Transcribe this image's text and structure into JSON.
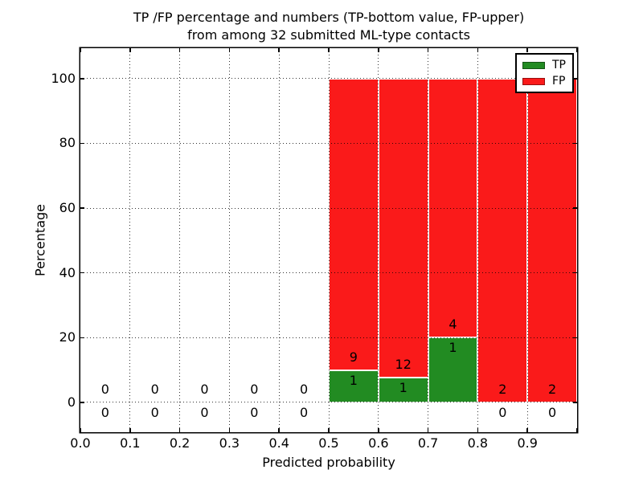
{
  "chart_data": {
    "type": "bar",
    "subtype": "stacked_percentage_histogram",
    "title_line1": "TP /FP percentage and numbers (TP-bottom value, FP-upper)",
    "title_line2": "from among 32 submitted ML-type contacts",
    "xlabel": "Predicted probability",
    "ylabel": "Percentage",
    "total_contacts": 32,
    "bin_edges": [
      0.0,
      0.1,
      0.2,
      0.3,
      0.4,
      0.5,
      0.6,
      0.7,
      0.8,
      0.9,
      1.0
    ],
    "xtick_values": [
      0.0,
      0.1,
      0.2,
      0.3,
      0.4,
      0.5,
      0.6,
      0.7,
      0.8,
      0.9
    ],
    "xtick_labels": [
      "0.0",
      "0.1",
      "0.2",
      "0.3",
      "0.4",
      "0.5",
      "0.6",
      "0.7",
      "0.8",
      "0.9"
    ],
    "ytick_values": [
      0,
      20,
      40,
      60,
      80,
      100
    ],
    "ytick_labels": [
      "0",
      "20",
      "40",
      "60",
      "80",
      "100"
    ],
    "ylim": [
      -9.2,
      109.4
    ],
    "grid": "dotted",
    "legend_position": "upper-right",
    "series": [
      {
        "name": "TP",
        "color": "#228b22",
        "counts": [
          0,
          0,
          0,
          0,
          0,
          1,
          1,
          1,
          0,
          0
        ]
      },
      {
        "name": "FP",
        "color": "#fa1a1a",
        "counts": [
          0,
          0,
          0,
          0,
          0,
          9,
          12,
          4,
          2,
          2
        ]
      }
    ],
    "tp_percent_by_bin": [
      0,
      0,
      0,
      0,
      0,
      10.0,
      7.7,
      20.0,
      0,
      0
    ],
    "fp_percent_by_bin": [
      0,
      0,
      0,
      0,
      0,
      90.0,
      92.3,
      80.0,
      100.0,
      100.0
    ]
  }
}
